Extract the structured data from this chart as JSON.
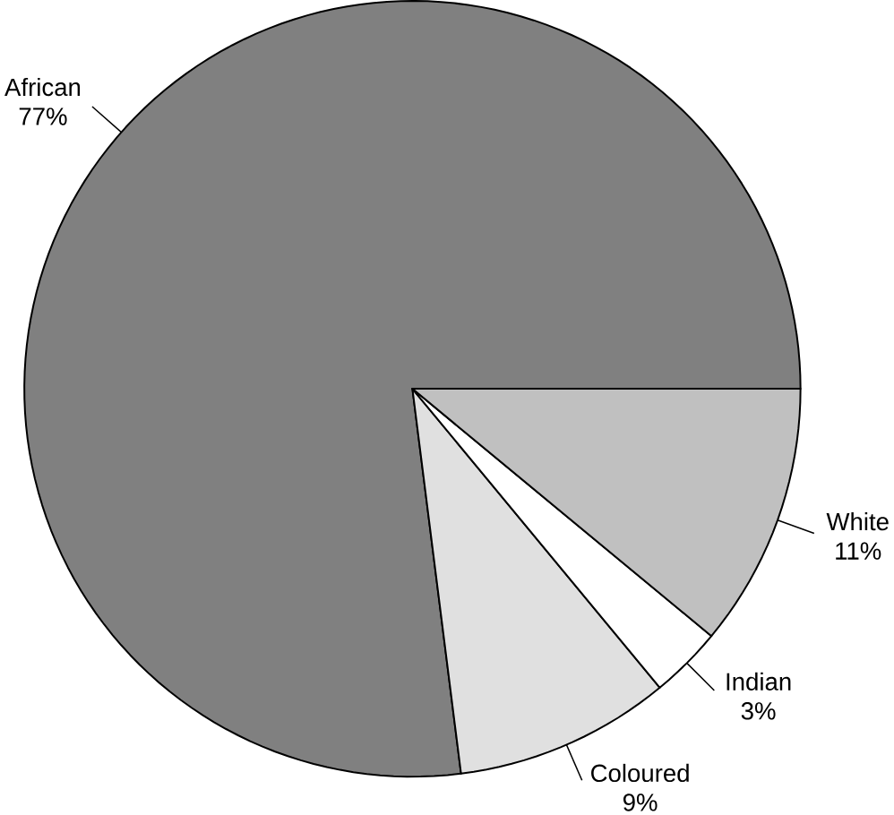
{
  "chart_data": {
    "type": "pie",
    "categories": [
      "African",
      "Coloured",
      "Indian",
      "White"
    ],
    "values": [
      77,
      9,
      3,
      11
    ],
    "colors": [
      "#808080",
      "#e0e0e0",
      "#ffffff",
      "#c0c0c0"
    ],
    "value_labels": [
      "77%",
      "9%",
      "3%",
      "11%"
    ]
  }
}
